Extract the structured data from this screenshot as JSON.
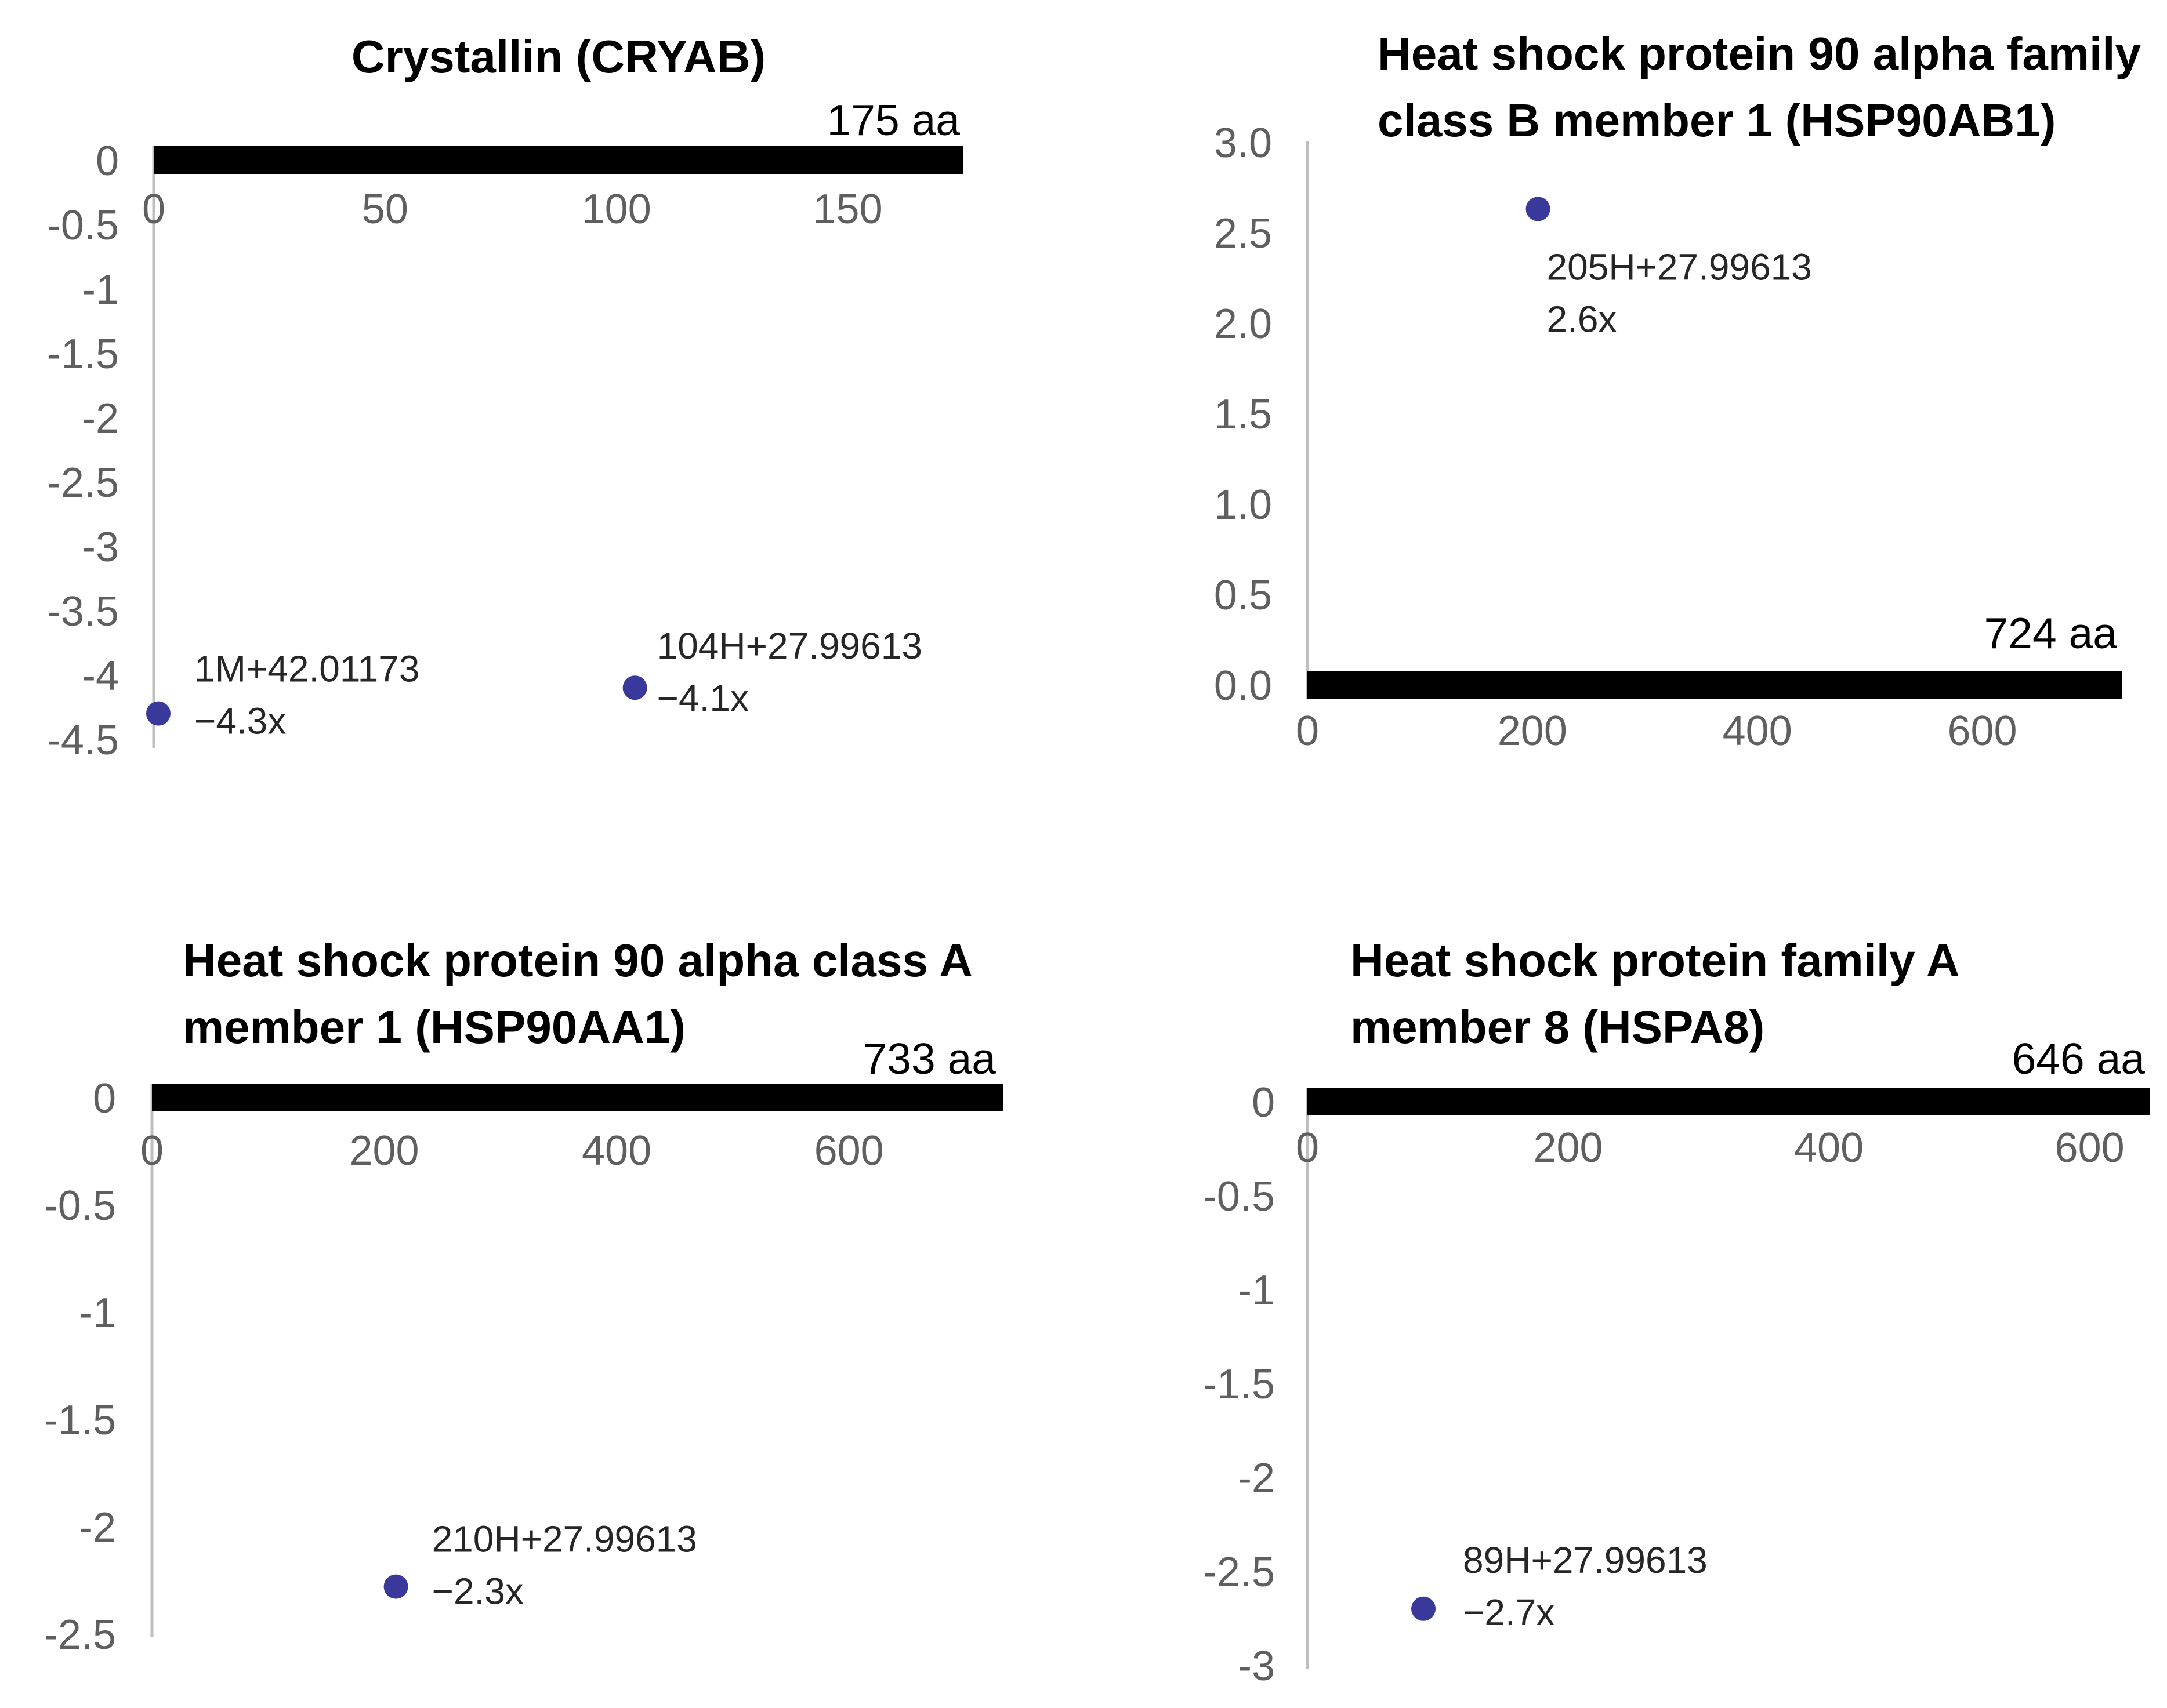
{
  "figure": {
    "background": "#ffffff",
    "marker_color": "#39399c",
    "bar_color": "#000000",
    "axis_line_color": "#bfbfbf",
    "tick_text_color": "#5f5f5f",
    "data_label_color": "#262626",
    "title_color": "#000000"
  },
  "chart_data": [
    {
      "type": "scatter",
      "gene": "CRYAB",
      "title_lines": [
        "Crystallin (CRYAB)"
      ],
      "protein_length_aa": 175,
      "length_label": "175 aa",
      "xlim": [
        0,
        175
      ],
      "ylim": [
        -4.5,
        0
      ],
      "x_ticks": [
        0,
        50,
        100,
        150
      ],
      "y_ticks": [
        0,
        -0.5,
        -1,
        -1.5,
        -2,
        -2.5,
        -3,
        -3.5,
        -4,
        -4.5
      ],
      "y_tick_labels": [
        "0",
        "-0.5",
        "-1",
        "-1.5",
        "-2",
        "-2.5",
        "-3",
        "-3.5",
        "-4",
        "-4.5"
      ],
      "grid": false,
      "legend": false,
      "points": [
        {
          "x": 1,
          "y": -4.3,
          "label_lines": [
            "1M+42.01173",
            "−4.3x"
          ]
        },
        {
          "x": 104,
          "y": -4.1,
          "label_lines": [
            "104H+27.99613",
            "−4.1x"
          ]
        }
      ]
    },
    {
      "type": "scatter",
      "gene": "HSP90AB1",
      "title_lines": [
        "Heat shock protein 90 alpha family",
        "class B member 1 (HSP90AB1)"
      ],
      "protein_length_aa": 724,
      "length_label": "724 aa",
      "xlim": [
        0,
        724
      ],
      "ylim": [
        0,
        3.0
      ],
      "x_ticks": [
        0,
        200,
        400,
        600
      ],
      "y_ticks": [
        3.0,
        2.5,
        2.0,
        1.5,
        1.0,
        0.5,
        0.0
      ],
      "y_tick_labels": [
        "3.0",
        "2.5",
        "2.0",
        "1.5",
        "1.0",
        "0.5",
        "0.0"
      ],
      "grid": false,
      "legend": false,
      "points": [
        {
          "x": 205,
          "y": 2.63,
          "label_lines": [
            "205H+27.99613",
            "2.6x"
          ]
        }
      ]
    },
    {
      "type": "scatter",
      "gene": "HSP90AA1",
      "title_lines": [
        "Heat shock protein 90 alpha class A",
        "member 1 (HSP90AA1)"
      ],
      "protein_length_aa": 733,
      "length_label": "733 aa",
      "xlim": [
        0,
        733
      ],
      "ylim": [
        -2.5,
        0
      ],
      "x_ticks": [
        0,
        200,
        400,
        600
      ],
      "y_ticks": [
        0,
        -0.5,
        -1,
        -1.5,
        -2,
        -2.5
      ],
      "y_tick_labels": [
        "0",
        "-0.5",
        "-1",
        "-1.5",
        "-2",
        "-2.5"
      ],
      "grid": false,
      "legend": false,
      "points": [
        {
          "x": 210,
          "y": -2.28,
          "label_lines": [
            "210H+27.99613",
            "−2.3x"
          ]
        }
      ]
    },
    {
      "type": "scatter",
      "gene": "HSPA8",
      "title_lines": [
        "Heat shock protein family A",
        "member 8 (HSPA8)"
      ],
      "protein_length_aa": 646,
      "length_label": "646 aa",
      "xlim": [
        0,
        646
      ],
      "ylim": [
        -3,
        0
      ],
      "x_ticks": [
        0,
        200,
        400,
        600
      ],
      "y_ticks": [
        0,
        -0.5,
        -1,
        -1.5,
        -2,
        -2.5,
        -3
      ],
      "y_tick_labels": [
        "0",
        "-0.5",
        "-1",
        "-1.5",
        "-2",
        "-2.5",
        "-3"
      ],
      "grid": false,
      "legend": false,
      "points": [
        {
          "x": 89,
          "y": -2.7,
          "label_lines": [
            "89H+27.99613",
            "−2.7x"
          ]
        }
      ]
    }
  ]
}
